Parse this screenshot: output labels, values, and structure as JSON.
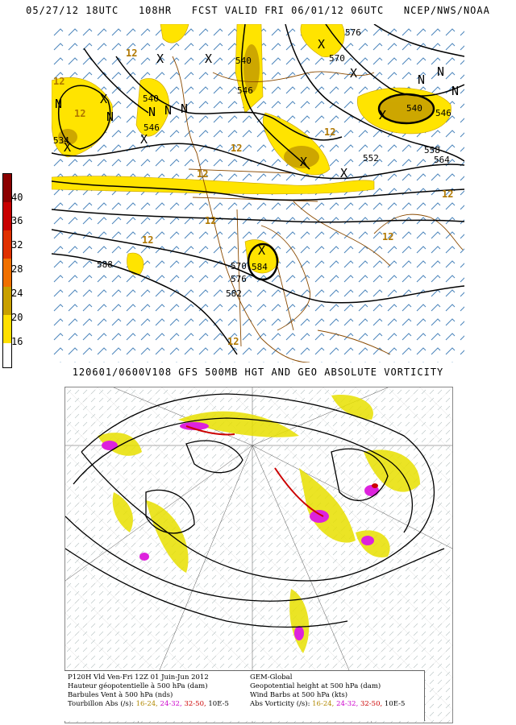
{
  "top_panel": {
    "header": "05/27/12 18UTC   108HR   FCST VALID FRI 06/01/12 06UTC   NCEP/NWS/NOAA",
    "caption": "120601/0600V108 GFS 500MB HGT AND GEO ABSOLUTE VORTICITY",
    "legend": {
      "ticks": [
        "40",
        "36",
        "32",
        "28",
        "24",
        "20",
        "16"
      ],
      "colors": [
        "#8b0000",
        "#c80000",
        "#e03000",
        "#f07000",
        "#c8a000",
        "#ffe000",
        "#ffffff"
      ]
    },
    "contour_labels": [
      "576",
      "570",
      "540",
      "546",
      "540",
      "546",
      "534",
      "540",
      "546",
      "552",
      "558",
      "564",
      "588",
      "570",
      "584",
      "576",
      "582"
    ],
    "vort_labels": [
      "12",
      "12",
      "12",
      "12",
      "12",
      "12",
      "12",
      "12",
      "12",
      "12",
      "12"
    ],
    "center_markers": [
      "N",
      "N",
      "N",
      "N",
      "N",
      "N",
      "N",
      "N",
      "X",
      "X",
      "X",
      "X",
      "X",
      "X",
      "X",
      "X",
      "X",
      "X",
      "X"
    ],
    "colors": {
      "contour": "#000000",
      "barb": "#2060a0",
      "vort_fill": "#ffe400",
      "coast": "#8a4a00"
    }
  },
  "bottom_panel": {
    "info_left": {
      "line1": "P120H Vld Ven-Fri 12Z 01 Juin-Jun 2012",
      "line2": "Hauteur géopotentielle à 500 hPa (dam)",
      "line3": "Barbules Vent à 500 hPa (nds)",
      "line4_label": "Tourbillon Abs (/s):",
      "ranges": [
        "16-24,",
        "24-32,",
        "32-50,",
        "10E-5"
      ]
    },
    "info_right": {
      "line1": "GEM-Global",
      "line2": "Geopotential height at 500 hPa (dam)",
      "line3": "Wind Barbs at 500 hPa (kts)",
      "line4_label": "Abs Vorticity (/s):",
      "ranges": [
        "16-24,",
        "24-32,",
        "32-50,",
        "10E-5"
      ]
    },
    "colors": {
      "contour": "#000000",
      "fill_low": "#e8e000",
      "fill_mid": "#dd22dd",
      "fill_high": "#cc0000"
    }
  }
}
